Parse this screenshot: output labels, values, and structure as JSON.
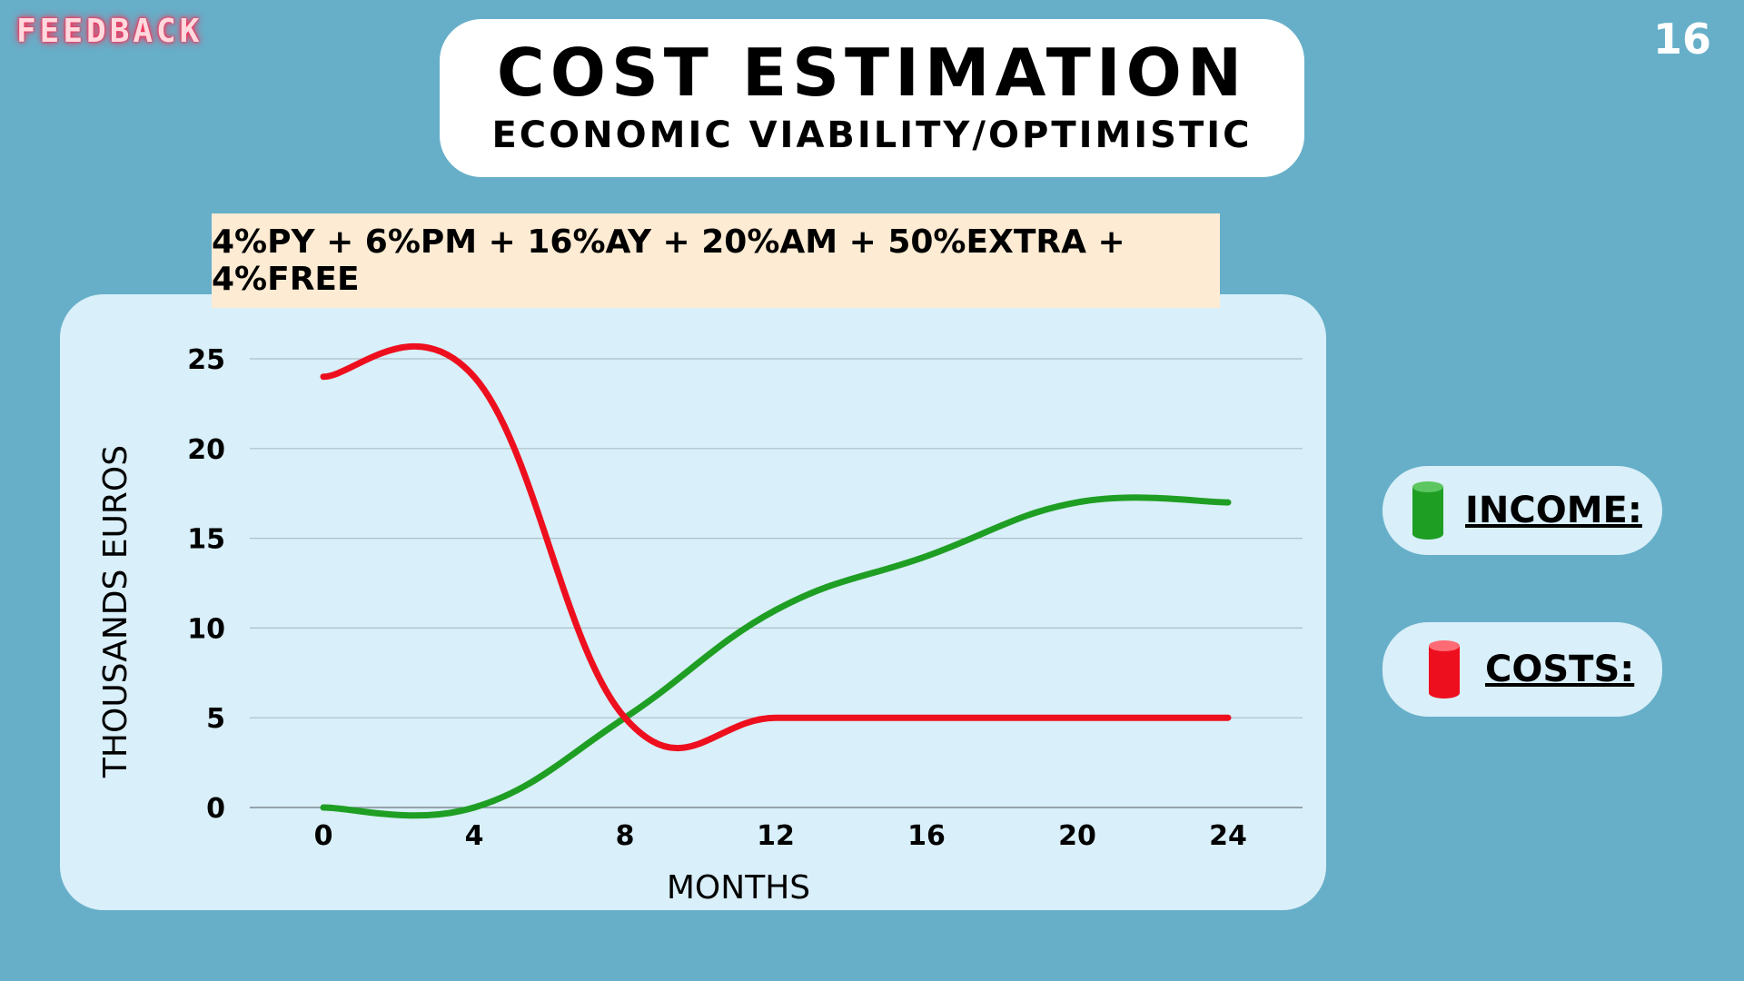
{
  "brand": "FEEDBACK",
  "page_number": "16",
  "header": {
    "title": "COST ESTIMATION",
    "subtitle": "ECONOMIC VIABILITY/OPTIMISTIC"
  },
  "formula": "4%PY + 6%PM + 16%AY + 20%AM + 50%EXTRA + 4%FREE",
  "legend": [
    {
      "label": "INCOME:",
      "color": "#1f9e24",
      "icon": "green-cylinder-icon"
    },
    {
      "label": "COSTS:",
      "color": "#ee0f1e",
      "icon": "red-cylinder-icon"
    }
  ],
  "chart_data": {
    "type": "line",
    "xlabel": "MONTHS",
    "ylabel": "THOUSANDS EUROS",
    "x": [
      0,
      4,
      8,
      12,
      16,
      20,
      24
    ],
    "xlim": [
      0,
      24
    ],
    "ylim": [
      0,
      25
    ],
    "yticks": [
      0,
      5,
      10,
      15,
      20,
      25
    ],
    "grid": true,
    "legend_position": "right",
    "series": [
      {
        "name": "INCOME",
        "color": "#1f9e24",
        "values": [
          0,
          0,
          5,
          11,
          14,
          17,
          17
        ]
      },
      {
        "name": "COSTS",
        "color": "#ee0f1e",
        "values": [
          24,
          24,
          5,
          5,
          5,
          5,
          5
        ]
      }
    ]
  }
}
